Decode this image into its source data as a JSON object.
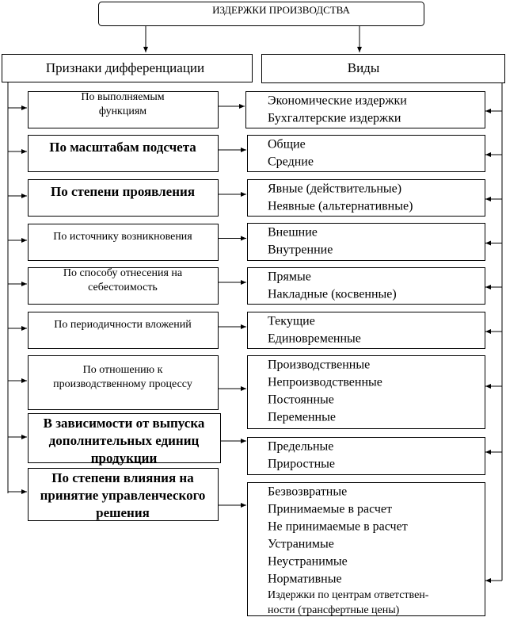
{
  "title": "ИЗДЕРЖКИ ПРОИЗВОДСТВА",
  "headers": {
    "left": "Признаки дифференциации",
    "right": "Виды"
  },
  "rows": [
    {
      "criterion": [
        "По выполняемым",
        "функциям"
      ],
      "types": [
        "Экономические издержки",
        "Бухгалтерские издержки"
      ]
    },
    {
      "criterion": [
        "По масштабам подсчета"
      ],
      "types": [
        "Общие",
        "Средние"
      ]
    },
    {
      "criterion": [
        "По степени проявления"
      ],
      "types": [
        "Явные (действительные)",
        "Неявные (альтернативные)"
      ]
    },
    {
      "criterion": [
        "По источнику возникновения"
      ],
      "types": [
        "Внешние",
        "Внутренние"
      ]
    },
    {
      "criterion": [
        "По способу отнесения на",
        "себестоимость"
      ],
      "types": [
        "Прямые",
        "Накладные (косвенные)"
      ]
    },
    {
      "criterion": [
        "По периодичности вложений"
      ],
      "types": [
        "Текущие",
        "Единовременные"
      ]
    },
    {
      "criterion": [
        "По отношению к",
        "производственному процессу"
      ],
      "types": [
        "Производственные",
        "Непроизводственные",
        "Постоянные",
        "Переменные"
      ]
    },
    {
      "criterion": [
        "В зависимости от выпуска",
        "дополнительных единиц",
        "продукции"
      ],
      "types": [
        "Предельные",
        "Приростные"
      ]
    },
    {
      "criterion": [
        "По степени влияния на",
        "принятие управленческого",
        "решения"
      ],
      "types": [
        "Безвозвратные",
        "Принимаемые в расчет",
        "Не принимаемые в расчет",
        "Устранимые",
        "Неустранимые",
        "Нормативные",
        "Издержки по центрам      ответствен-",
        "ности (трансфертные цены)"
      ]
    }
  ]
}
